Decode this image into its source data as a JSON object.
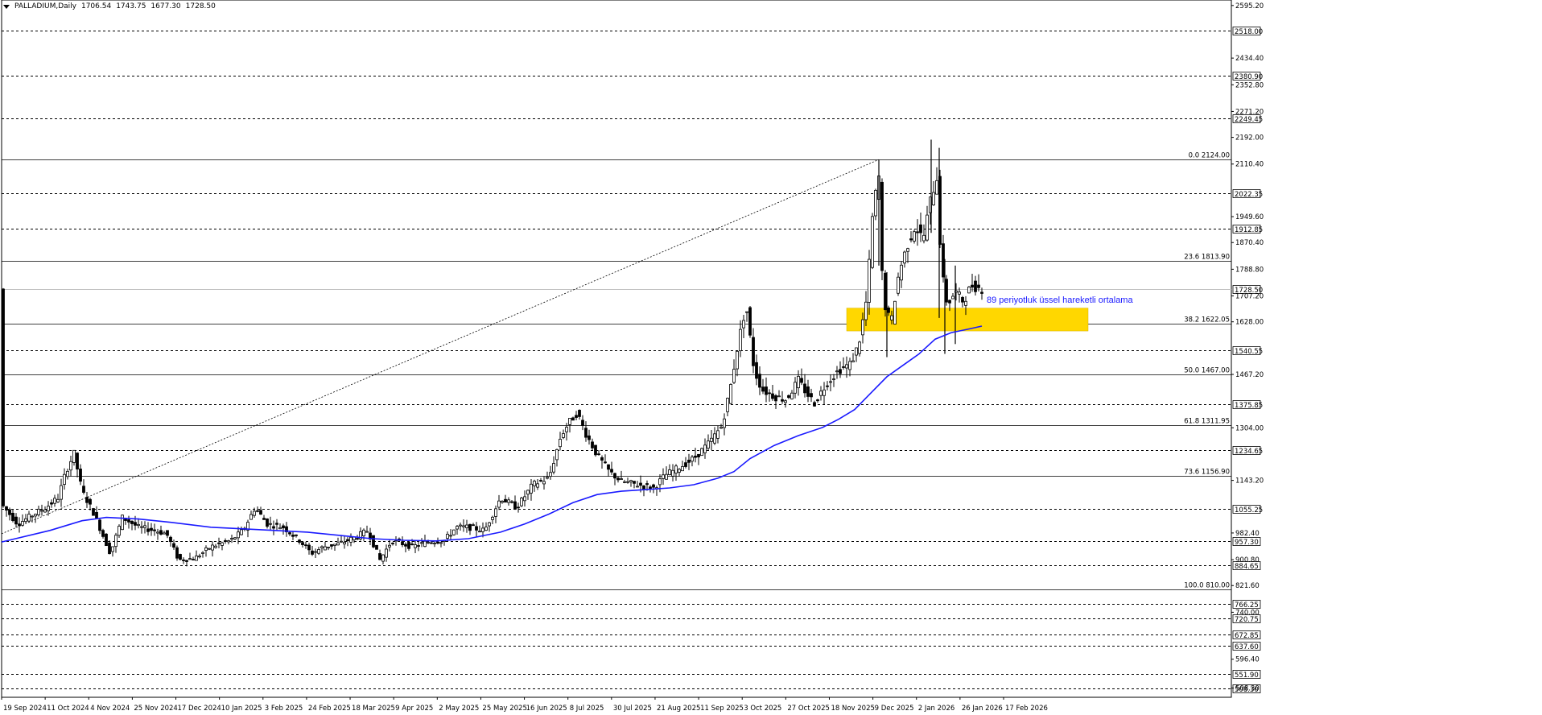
{
  "header": {
    "symbol": "PALLADIUM,Daily",
    "open": "1706.54",
    "high": "1743.75",
    "low": "1677.30",
    "close": "1728.50"
  },
  "chart_data": {
    "type": "candlestick",
    "ylim": [
      480,
      2612
    ],
    "y_ticks": [
      "2595.20",
      "2434.40",
      "2352.80",
      "2271.20",
      "2192.00",
      "2110.40",
      "1949.60",
      "1870.40",
      "1788.80",
      "1707.20",
      "1628.00",
      "1467.20",
      "1304.00",
      "1143.20",
      "982.40",
      "900.80",
      "821.60",
      "740.00",
      "596.40",
      "508.30"
    ],
    "level_lines": [
      {
        "value": 2518.0,
        "label": "2518.00",
        "style": "dashed"
      },
      {
        "value": 2380.9,
        "label": "2380.90",
        "style": "dashed"
      },
      {
        "value": 2249.45,
        "label": "2249.45",
        "style": "dashed"
      },
      {
        "value": 2022.35,
        "label": "2022.35",
        "style": "dashed"
      },
      {
        "value": 1912.85,
        "label": "1912.85",
        "style": "dashed"
      },
      {
        "value": 1540.55,
        "label": "1540.55",
        "style": "dashed"
      },
      {
        "value": 1375.85,
        "label": "1375.85",
        "style": "dashed"
      },
      {
        "value": 1234.65,
        "label": "1234.65",
        "style": "dashed"
      },
      {
        "value": 1055.25,
        "label": "1055.25",
        "style": "dashed"
      },
      {
        "value": 957.3,
        "label": "957.30",
        "style": "dashed"
      },
      {
        "value": 884.65,
        "label": "884.65",
        "style": "dashed"
      },
      {
        "value": 766.25,
        "label": "766.25",
        "style": "dashed"
      },
      {
        "value": 720.75,
        "label": "720.75",
        "style": "dashed"
      },
      {
        "value": 672.85,
        "label": "672.85",
        "style": "dashed"
      },
      {
        "value": 637.6,
        "label": "637.60",
        "style": "dashed"
      },
      {
        "value": 551.9,
        "label": "551.90",
        "style": "dashed"
      },
      {
        "value": 508.3,
        "label": "508.30",
        "style": "dashed"
      }
    ],
    "current_price": {
      "value": 1728.5,
      "label": "1728.50"
    },
    "fibonacci": [
      {
        "value": 2124.0,
        "label": "0.0 2124.00"
      },
      {
        "value": 1813.9,
        "label": "23.6 1813.90"
      },
      {
        "value": 1622.05,
        "label": "38.2 1622.05"
      },
      {
        "value": 1467.0,
        "label": "50.0 1467.00"
      },
      {
        "value": 1311.95,
        "label": "61.8 1311.95"
      },
      {
        "value": 1156.9,
        "label": "73.6 1156.90"
      },
      {
        "value": 810.0,
        "label": "100.0 810.00"
      }
    ],
    "x_labels": [
      "19 Sep 2024",
      "11 Oct 2024",
      "4 Nov 2024",
      "25 Nov 2024",
      "17 Dec 2024",
      "10 Jan 2025",
      "3 Feb 2025",
      "24 Feb 2025",
      "18 Mar 2025",
      "9 Apr 2025",
      "2 May 2025",
      "25 May 2025",
      "16 Jun 2025",
      "8 Jul 2025",
      "30 Jul 2025",
      "21 Aug 2025",
      "11 Sep 2025",
      "3 Oct 2025",
      "27 Oct 2025",
      "18 Nov 2025",
      "9 Dec 2025",
      "2 Jan 2026",
      "26 Jan 2026",
      "17 Feb 2026"
    ],
    "price_path": [
      [
        0,
        1070
      ],
      [
        20,
        1010
      ],
      [
        40,
        1040
      ],
      [
        55,
        1060
      ],
      [
        70,
        1090
      ],
      [
        80,
        1170
      ],
      [
        90,
        1225
      ],
      [
        100,
        1110
      ],
      [
        115,
        1040
      ],
      [
        125,
        980
      ],
      [
        135,
        920
      ],
      [
        150,
        1030
      ],
      [
        170,
        1000
      ],
      [
        190,
        990
      ],
      [
        205,
        980
      ],
      [
        220,
        900
      ],
      [
        240,
        905
      ],
      [
        260,
        940
      ],
      [
        285,
        960
      ],
      [
        300,
        990
      ],
      [
        315,
        1060
      ],
      [
        330,
        1010
      ],
      [
        350,
        1000
      ],
      [
        370,
        960
      ],
      [
        385,
        920
      ],
      [
        400,
        940
      ],
      [
        420,
        950
      ],
      [
        440,
        970
      ],
      [
        455,
        990
      ],
      [
        470,
        900
      ],
      [
        485,
        960
      ],
      [
        510,
        940
      ],
      [
        530,
        955
      ],
      [
        550,
        960
      ],
      [
        565,
        1000
      ],
      [
        580,
        1000
      ],
      [
        600,
        990
      ],
      [
        620,
        1090
      ],
      [
        640,
        1060
      ],
      [
        660,
        1130
      ],
      [
        680,
        1150
      ],
      [
        695,
        1280
      ],
      [
        705,
        1320
      ],
      [
        715,
        1350
      ],
      [
        725,
        1290
      ],
      [
        740,
        1220
      ],
      [
        755,
        1170
      ],
      [
        770,
        1140
      ],
      [
        790,
        1130
      ],
      [
        810,
        1120
      ],
      [
        825,
        1160
      ],
      [
        840,
        1180
      ],
      [
        860,
        1210
      ],
      [
        880,
        1260
      ],
      [
        895,
        1310
      ],
      [
        905,
        1420
      ],
      [
        915,
        1560
      ],
      [
        925,
        1680
      ],
      [
        935,
        1480
      ],
      [
        945,
        1420
      ],
      [
        960,
        1400
      ],
      [
        975,
        1390
      ],
      [
        990,
        1450
      ],
      [
        1000,
        1410
      ],
      [
        1010,
        1380
      ],
      [
        1025,
        1440
      ],
      [
        1040,
        1480
      ],
      [
        1055,
        1500
      ],
      [
        1065,
        1560
      ],
      [
        1075,
        1700
      ],
      [
        1083,
        1980
      ],
      [
        1090,
        2070
      ],
      [
        1095,
        1700
      ],
      [
        1105,
        1620
      ],
      [
        1115,
        1780
      ],
      [
        1125,
        1860
      ],
      [
        1135,
        1920
      ],
      [
        1145,
        1880
      ],
      [
        1155,
        2010
      ],
      [
        1162,
        2070
      ],
      [
        1168,
        1780
      ],
      [
        1175,
        1680
      ],
      [
        1185,
        1720
      ],
      [
        1195,
        1690
      ],
      [
        1205,
        1740
      ],
      [
        1218,
        1728.5
      ]
    ],
    "candle_spikes": [
      [
        1100,
        1520,
        1780
      ],
      [
        1155,
        1900,
        2185
      ],
      [
        1165,
        1640,
        2160
      ],
      [
        1172,
        1530,
        1820
      ],
      [
        1185,
        1560,
        1800
      ],
      [
        1090,
        1800,
        2124
      ]
    ],
    "ema_path": [
      [
        0,
        955
      ],
      [
        60,
        990
      ],
      [
        100,
        1020
      ],
      [
        130,
        1030
      ],
      [
        170,
        1025
      ],
      [
        210,
        1015
      ],
      [
        260,
        1000
      ],
      [
        300,
        995
      ],
      [
        340,
        990
      ],
      [
        380,
        985
      ],
      [
        420,
        975
      ],
      [
        460,
        965
      ],
      [
        500,
        960
      ],
      [
        540,
        958
      ],
      [
        580,
        965
      ],
      [
        620,
        985
      ],
      [
        650,
        1010
      ],
      [
        680,
        1040
      ],
      [
        710,
        1075
      ],
      [
        740,
        1100
      ],
      [
        770,
        1110
      ],
      [
        800,
        1115
      ],
      [
        830,
        1120
      ],
      [
        860,
        1130
      ],
      [
        890,
        1150
      ],
      [
        910,
        1170
      ],
      [
        930,
        1210
      ],
      [
        960,
        1250
      ],
      [
        990,
        1280
      ],
      [
        1020,
        1305
      ],
      [
        1040,
        1330
      ],
      [
        1060,
        1360
      ],
      [
        1080,
        1410
      ],
      [
        1100,
        1460
      ],
      [
        1120,
        1495
      ],
      [
        1140,
        1530
      ],
      [
        1160,
        1575
      ],
      [
        1180,
        1595
      ],
      [
        1200,
        1605
      ],
      [
        1218,
        1615
      ]
    ],
    "trendline": {
      "from": [
        0,
        980
      ],
      "to": [
        1090,
        2124
      ]
    },
    "zone": {
      "x1": 1050,
      "x2": 1350,
      "y_low": 1600,
      "y_high": 1670,
      "color": "#ffd700"
    },
    "annotation": "89 periyotluk üssel hareketli ortalama",
    "colors": {
      "candle": "#000000",
      "ema": "#1a1aff",
      "zone": "#ffd700",
      "grid_dash": "#000000"
    }
  }
}
